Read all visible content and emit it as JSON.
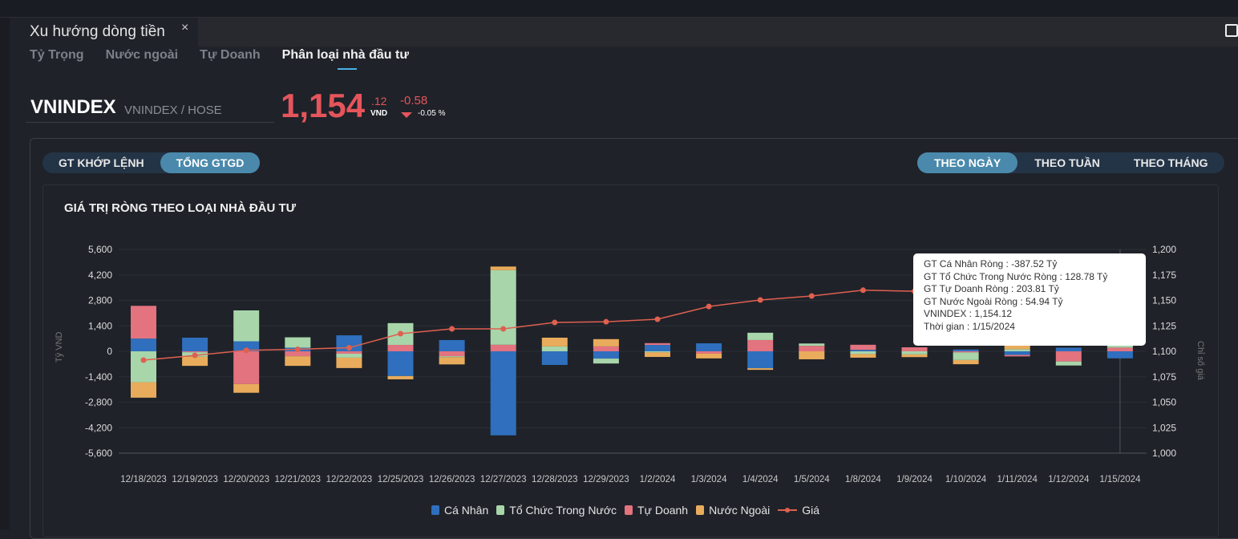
{
  "window": {
    "tab_title": "Xu hướng dòng tiền",
    "close_icon": "×"
  },
  "subtabs": [
    {
      "label": "Tỷ Trọng"
    },
    {
      "label": "Nước ngoài"
    },
    {
      "label": "Tự Doanh"
    },
    {
      "label": "Phân loại nhà đầu tư",
      "active": true
    }
  ],
  "ticker": {
    "symbol": "VNINDEX",
    "exchange": "VNINDEX / HOSE",
    "price_int": "1,154",
    "price_dec": ".12",
    "currency": "VND",
    "change": "-0.58",
    "change_pct": "-0.05 %"
  },
  "value_toggle": [
    {
      "label": "GT KHỚP LỆNH"
    },
    {
      "label": "TỔNG GTGD",
      "active": true
    }
  ],
  "period_toggle": [
    {
      "label": "THEO NGÀY",
      "active": true
    },
    {
      "label": "THEO TUẦN"
    },
    {
      "label": "THEO THÁNG"
    }
  ],
  "tooltip": {
    "lines": [
      "GT Cá Nhân Ròng  : -387.52 Tỷ",
      "GT Tổ Chức Trong Nước Ròng : 128.78 Tỷ",
      "GT Tự Doanh Ròng : 203.81 Tỷ",
      "GT Nước Ngoài Ròng : 54.94 Tỷ",
      "VNINDEX : 1,154.12",
      "Thời gian : 1/15/2024"
    ]
  },
  "chart_data": {
    "type": "bar",
    "title": "GIÁ TRỊ RÒNG THEO LOẠI NHÀ ĐẦU TƯ",
    "ylabel": "Tỷ VND",
    "y2label": "Chỉ số giá",
    "ylim": [
      -5600,
      5600
    ],
    "yticks": [
      5600,
      4200,
      2800,
      1400,
      0,
      -1400,
      -2800,
      -4200,
      -5600
    ],
    "ytick_labels": [
      "5,600",
      "4,200",
      "2,800",
      "1,400",
      "0",
      "-1,400",
      "-2,800",
      "-4,200",
      "-5,600"
    ],
    "y2lim": [
      1000,
      1200
    ],
    "y2ticks": [
      1200,
      1175,
      1150,
      1125,
      1100,
      1075,
      1050,
      1025,
      1000
    ],
    "y2tick_labels": [
      "1,200",
      "1,175",
      "1,150",
      "1,125",
      "1,100",
      "1,075",
      "1,050",
      "1,025",
      "1,000"
    ],
    "categories": [
      "12/18/2023",
      "12/19/2023",
      "12/20/2023",
      "12/21/2023",
      "12/22/2023",
      "12/25/2023",
      "12/26/2023",
      "12/27/2023",
      "12/28/2023",
      "12/29/2023",
      "1/2/2024",
      "1/3/2024",
      "1/4/2024",
      "1/5/2024",
      "1/8/2024",
      "1/9/2024",
      "1/10/2024",
      "1/11/2024",
      "1/12/2024",
      "1/15/2024"
    ],
    "series": [
      {
        "name": "Cá Nhân",
        "color": "#2f6fbd",
        "values": [
          700,
          750,
          550,
          200,
          880,
          -1360,
          620,
          -4620,
          -750,
          -400,
          350,
          440,
          -930,
          0,
          80,
          0,
          100,
          -200,
          200,
          -387.52
        ]
      },
      {
        "name": "Tự Doanh",
        "color": "#e2737f",
        "values": [
          1800,
          -50,
          -1800,
          -270,
          -130,
          350,
          -270,
          360,
          0,
          270,
          100,
          -130,
          620,
          300,
          280,
          220,
          -60,
          -80,
          -560,
          203.81
        ]
      },
      {
        "name": "Tổ Chức Trong Nước",
        "color": "#a8d5aa",
        "values": [
          -1700,
          -250,
          1700,
          570,
          -220,
          1200,
          -50,
          4100,
          270,
          -270,
          -60,
          0,
          400,
          130,
          -150,
          -170,
          -420,
          120,
          -220,
          128.78
        ]
      },
      {
        "name": "Nước Ngoài",
        "color": "#e8ac5c",
        "values": [
          -850,
          -500,
          -480,
          -530,
          -570,
          -180,
          -400,
          200,
          480,
          400,
          -250,
          -260,
          -90,
          -440,
          -200,
          -150,
          -230,
          200,
          0,
          54.94
        ]
      }
    ],
    "line": {
      "name": "Giá",
      "color": "#e06050",
      "values": [
        1091.3,
        1096,
        1101,
        1102,
        1103.5,
        1117.3,
        1122,
        1122,
        1128.3,
        1129,
        1131.5,
        1144,
        1150.4,
        1154.3,
        1160,
        1159,
        1153,
        1157,
        1154.7,
        1154.12
      ]
    },
    "legend": [
      {
        "label": "Cá Nhân",
        "color": "#2f6fbd"
      },
      {
        "label": "Tổ Chức Trong Nước",
        "color": "#a8d5aa"
      },
      {
        "label": "Tự Doanh",
        "color": "#e2737f"
      },
      {
        "label": "Nước Ngoài",
        "color": "#e8ac5c"
      },
      {
        "label": "Giá",
        "color": "#e06050"
      }
    ],
    "legend_position": "bottom",
    "grid": true
  }
}
